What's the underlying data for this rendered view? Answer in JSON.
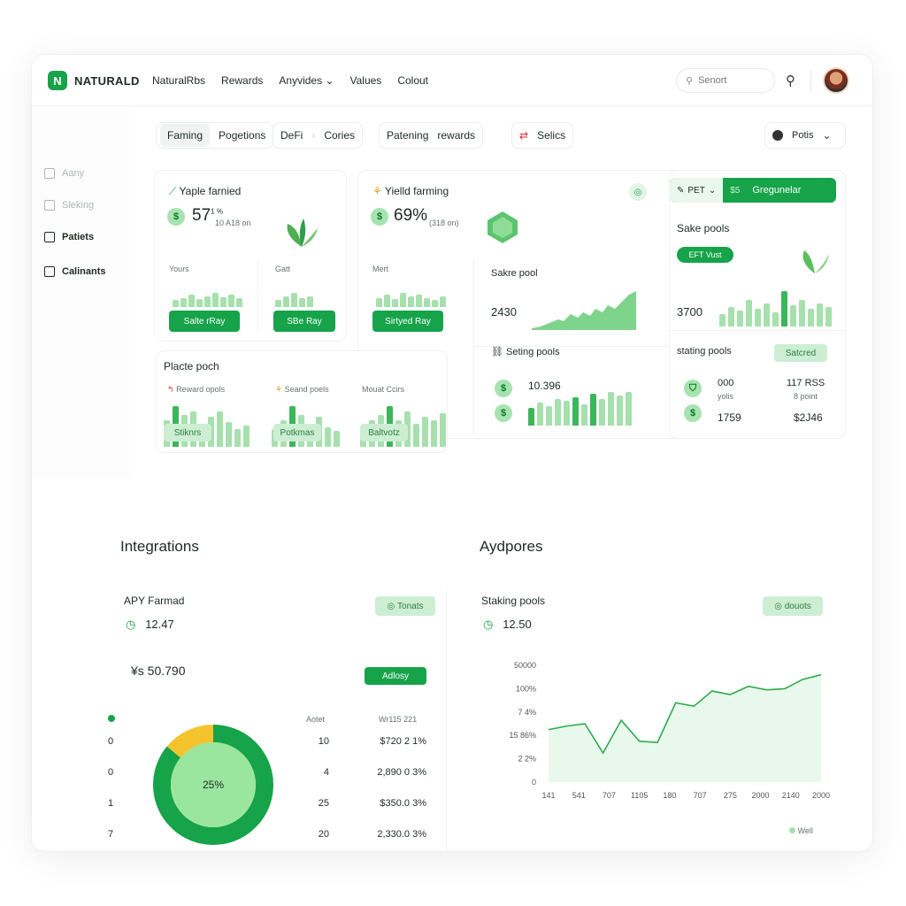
{
  "app": {
    "logo_letter": "N",
    "brand": "NATURALD",
    "accent": "#16a34a",
    "light_accent": "#a6e0ad"
  },
  "nav": [
    "NaturalRbs",
    "Rewards",
    "Anyvides",
    "Values",
    "Colout"
  ],
  "search": {
    "placeholder": "Senort"
  },
  "sidebar": [
    "Aany",
    "Sleking",
    "Patiets",
    "Calinants"
  ],
  "filters": {
    "group1": [
      "Faming",
      "Pogetions"
    ],
    "group2": [
      "DeFi",
      "Cories"
    ],
    "group3": [
      "Patening",
      "rewards"
    ],
    "group4": "Selics",
    "select": "Potis"
  },
  "card_a": {
    "title": "Yaple farnied",
    "value": "57",
    "sup": "1 %",
    "sub": "10 A18 on",
    "col1": "Yours",
    "col2": "Gatt",
    "btn1": "Salte rRay",
    "btn2": "SBe Ray"
  },
  "card_b": {
    "title": "Yielld farming",
    "value": "69%",
    "sub": "(318 on)",
    "col1": "Mert",
    "btn1": "Sirtyed Ray"
  },
  "card_b2": {
    "title": "Sakre pool",
    "value": "2430"
  },
  "card_c": {
    "tag": "PET",
    "tag2": "$5",
    "action": "Gregunelar",
    "title": "Sake pools",
    "pill": "EFT Vust",
    "value": "3700"
  },
  "place": {
    "title": "Placte poch",
    "col1": "Reward opols",
    "col2": "Seand poels",
    "col3": "Mouat Ccirs",
    "btn1": "Stiknrs",
    "btn2": "Potkmas",
    "btn3": "Baltvotz"
  },
  "staking": {
    "title": "Seting pools",
    "value": "10.396"
  },
  "staking_r": {
    "title": "stating pools",
    "button": "Satcred",
    "row1_a": "000",
    "row1_b": "yolis",
    "row1_c": "117 RSS",
    "row1_d": "8 point",
    "row2_a": "1759",
    "row2_c": "$2J46"
  },
  "sections": {
    "left": "Integrations",
    "right": "Aydpores"
  },
  "apy": {
    "title": "APY Farmad",
    "value": "12.47",
    "tag": "Tonats",
    "amount": "¥s 50.790",
    "button": "Adlosy",
    "legend_dot_color": "#16a34a",
    "donut_label": "25%",
    "col_h1": "Aotet",
    "col_h2": "Wr115 221",
    "rows": [
      {
        "n": "0",
        "a": "10",
        "b": "$720 2 1%"
      },
      {
        "n": "0",
        "a": "4",
        "b": "2,890 0 3%"
      },
      {
        "n": "1",
        "a": "25",
        "b": "$350.0 3%"
      },
      {
        "n": "7",
        "a": "20",
        "b": "2,330.0 3%"
      }
    ]
  },
  "chart_data": [
    {
      "type": "pie",
      "labels": [
        "yellow",
        "green"
      ],
      "values": [
        14,
        86
      ],
      "center_label": "25%"
    },
    {
      "type": "area",
      "title": "Staking pools",
      "value_label": "12.50",
      "tag": "douots",
      "legend": "Well",
      "yticks": [
        "50000",
        "100%",
        "7 4%",
        "15 86%",
        "2 2%",
        "0"
      ],
      "xticks": [
        "141",
        "541",
        "707",
        "1105",
        "180",
        "707",
        "275",
        "2000",
        "2140",
        "2000"
      ],
      "values": [
        0.45,
        0.48,
        0.5,
        0.25,
        0.53,
        0.35,
        0.34,
        0.68,
        0.65,
        0.78,
        0.75,
        0.82,
        0.79,
        0.8,
        0.88,
        0.92
      ]
    }
  ]
}
